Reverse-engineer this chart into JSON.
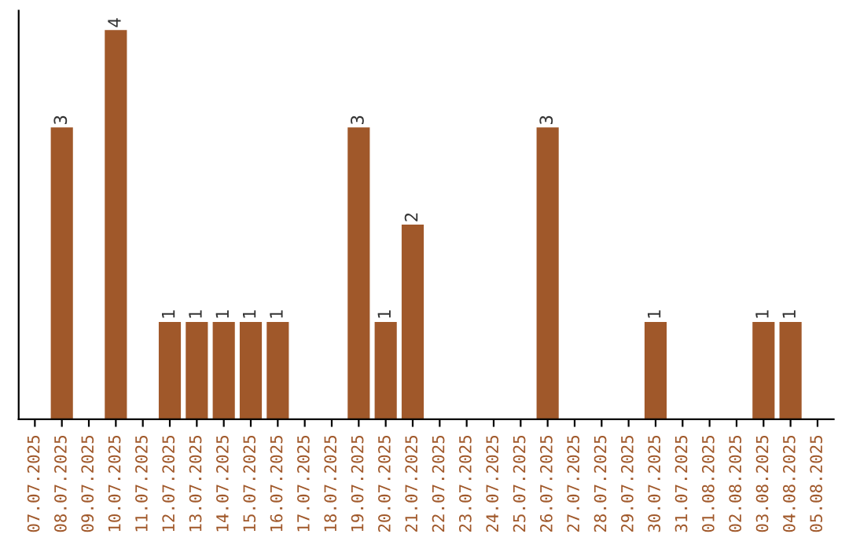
{
  "chart_data": {
    "type": "bar",
    "categories": [
      "07.07.2025",
      "08.07.2025",
      "09.07.2025",
      "10.07.2025",
      "11.07.2025",
      "12.07.2025",
      "13.07.2025",
      "14.07.2025",
      "15.07.2025",
      "16.07.2025",
      "17.07.2025",
      "18.07.2025",
      "19.07.2025",
      "20.07.2025",
      "21.07.2025",
      "22.07.2025",
      "23.07.2025",
      "24.07.2025",
      "25.07.2025",
      "26.07.2025",
      "27.07.2025",
      "28.07.2025",
      "29.07.2025",
      "30.07.2025",
      "31.07.2025",
      "01.08.2025",
      "02.08.2025",
      "03.08.2025",
      "04.08.2025",
      "05.08.2025"
    ],
    "values": [
      null,
      3,
      null,
      4,
      null,
      1,
      1,
      1,
      1,
      1,
      null,
      null,
      3,
      1,
      2,
      null,
      null,
      null,
      null,
      3,
      null,
      null,
      null,
      1,
      null,
      null,
      null,
      1,
      1,
      null
    ],
    "color": "#a0582a",
    "data_labels": true,
    "grid": false,
    "tick_labels": "x"
  }
}
